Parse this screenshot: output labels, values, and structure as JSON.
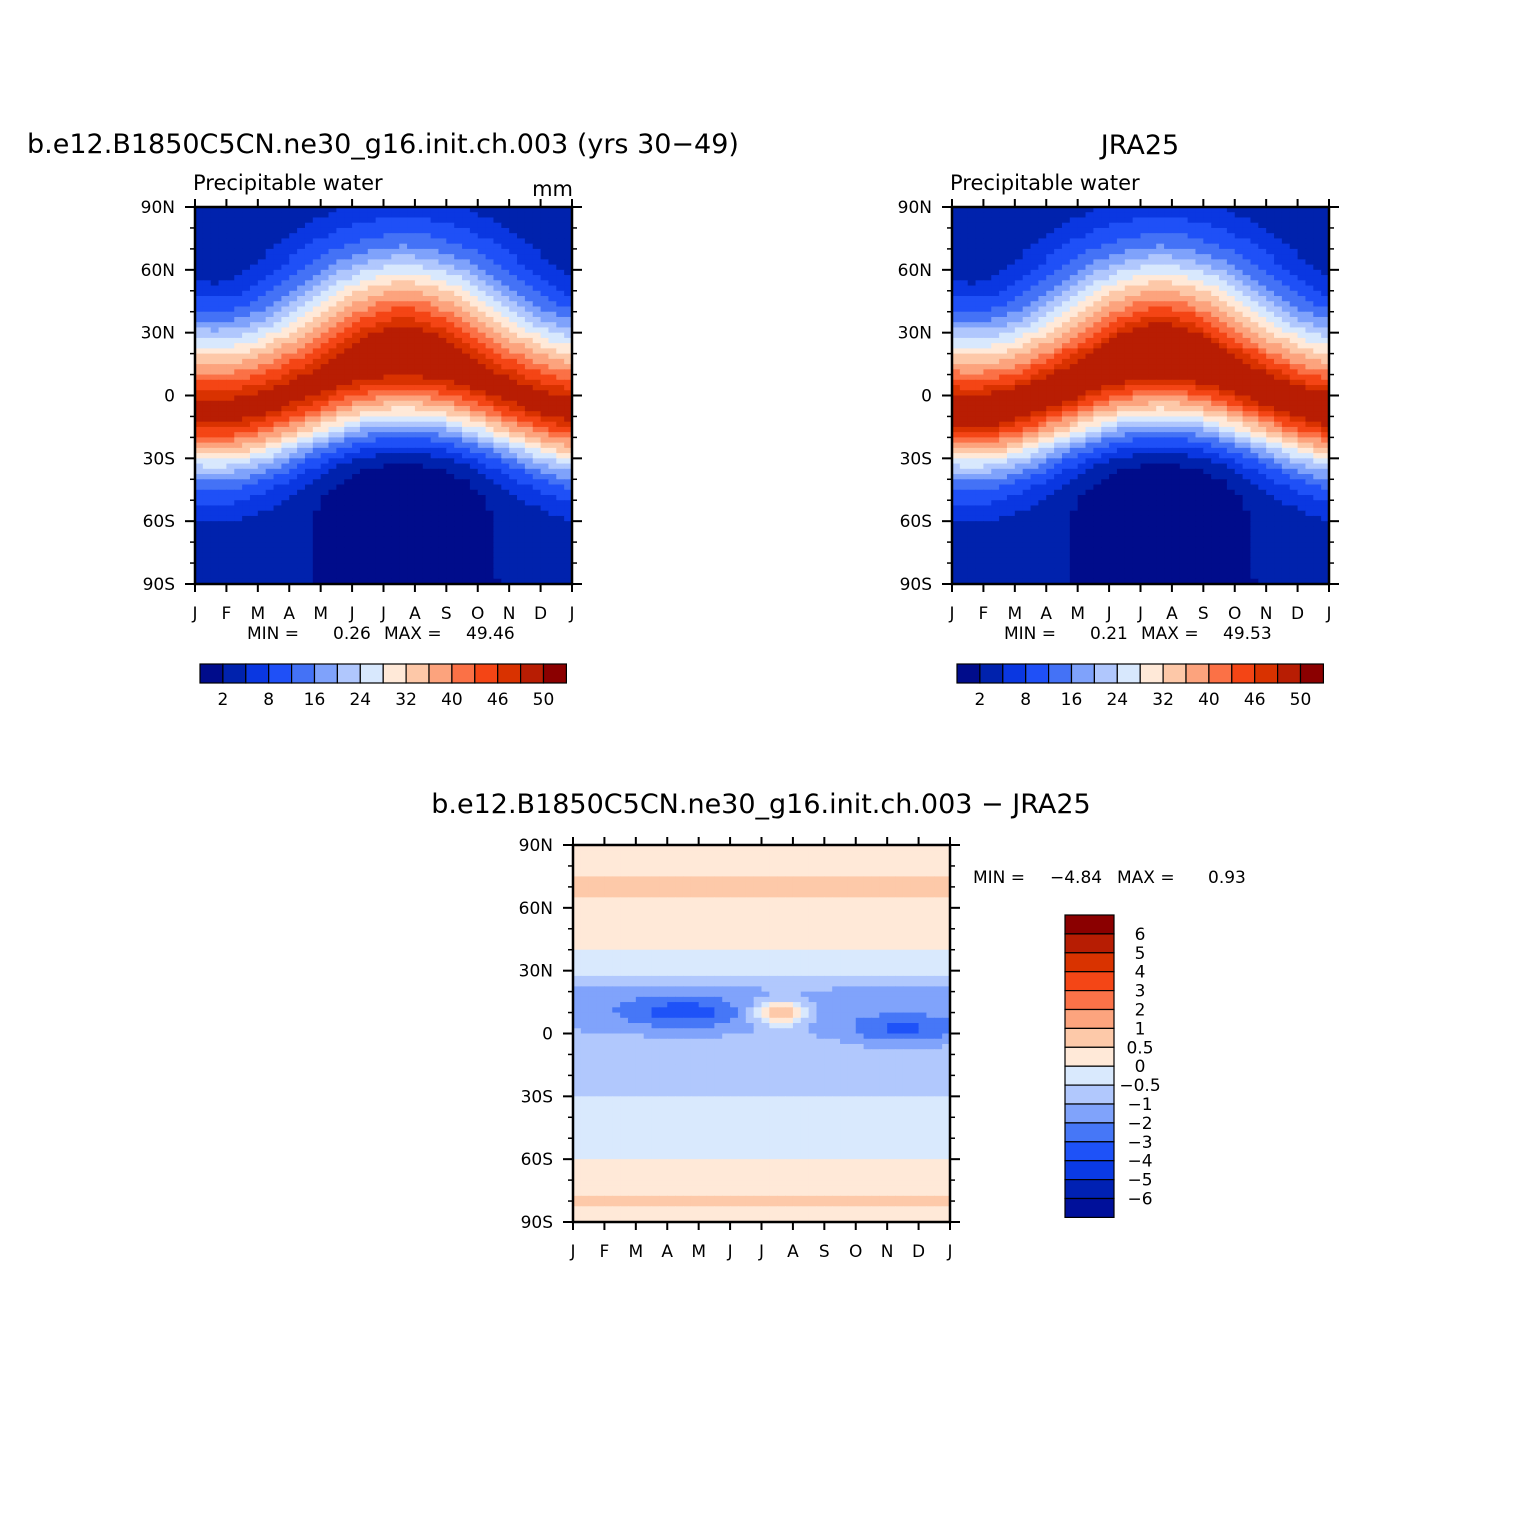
{
  "colors": {
    "abs_levels": [
      "#000c8b",
      "#0022ad",
      "#0a37e1",
      "#1f50f7",
      "#4472f6",
      "#7fa2fb",
      "#b0c7fd",
      "#d8e8fd",
      "#ffe9d8",
      "#fdc8a8",
      "#fca37d",
      "#fb7146",
      "#f44515",
      "#d93200",
      "#b81d03",
      "#8b0000"
    ],
    "diff_levels": [
      "#00109a",
      "#0021b3",
      "#0a3ae4",
      "#1e52f8",
      "#4677f7",
      "#80a3fb",
      "#b1c8fd",
      "#d9e9fd",
      "#ffe9d8",
      "#fdc9a9",
      "#fca47e",
      "#fb7248",
      "#f44616",
      "#d93300",
      "#b71d03",
      "#8b0000"
    ]
  },
  "chart_data": [
    {
      "type": "heatmap",
      "title": "b.e12.B1850C5CN.ne30_g16.init.ch.003 (yrs 30−49)",
      "subtitle": "Precipitable water",
      "units": "mm",
      "x": [
        "J",
        "F",
        "M",
        "A",
        "M",
        "J",
        "J",
        "A",
        "S",
        "O",
        "N",
        "D",
        "J"
      ],
      "y": [
        "90N",
        "60N",
        "30N",
        "0",
        "30S",
        "60S",
        "90S"
      ],
      "xlim": [
        0,
        12
      ],
      "ylim": [
        -90,
        90
      ],
      "stats": {
        "min_label": "MIN =",
        "min": "0.26",
        "max_label": "MAX =",
        "max": "49.46"
      },
      "colorbar": {
        "labels": [
          "2",
          "8",
          "16",
          "24",
          "32",
          "40",
          "46",
          "50"
        ]
      }
    },
    {
      "type": "heatmap",
      "title": "JRA25",
      "subtitle": "Precipitable water",
      "units": "",
      "x": [
        "J",
        "F",
        "M",
        "A",
        "M",
        "J",
        "J",
        "A",
        "S",
        "O",
        "N",
        "D",
        "J"
      ],
      "y": [
        "90N",
        "60N",
        "30N",
        "0",
        "30S",
        "60S",
        "90S"
      ],
      "xlim": [
        0,
        12
      ],
      "ylim": [
        -90,
        90
      ],
      "stats": {
        "min_label": "MIN =",
        "min": "0.21",
        "max_label": "MAX =",
        "max": "49.53"
      },
      "colorbar": {
        "labels": [
          "2",
          "8",
          "16",
          "24",
          "32",
          "40",
          "46",
          "50"
        ]
      }
    },
    {
      "type": "heatmap",
      "title": "b.e12.B1850C5CN.ne30_g16.init.ch.003 − JRA25",
      "subtitle": "",
      "units": "",
      "x": [
        "J",
        "F",
        "M",
        "A",
        "M",
        "J",
        "J",
        "A",
        "S",
        "O",
        "N",
        "D",
        "J"
      ],
      "y": [
        "90N",
        "60N",
        "30N",
        "0",
        "30S",
        "60S",
        "90S"
      ],
      "xlim": [
        0,
        12
      ],
      "ylim": [
        -90,
        90
      ],
      "stats": {
        "min_label": "MIN =",
        "min": "−4.84",
        "max_label": "MAX =",
        "max": "0.93"
      },
      "colorbar": {
        "labels": [
          "6",
          "5",
          "4",
          "3",
          "2",
          "1",
          "0.5",
          "0",
          "−0.5",
          "−1",
          "−2",
          "−3",
          "−4",
          "−5",
          "−6"
        ]
      }
    }
  ]
}
